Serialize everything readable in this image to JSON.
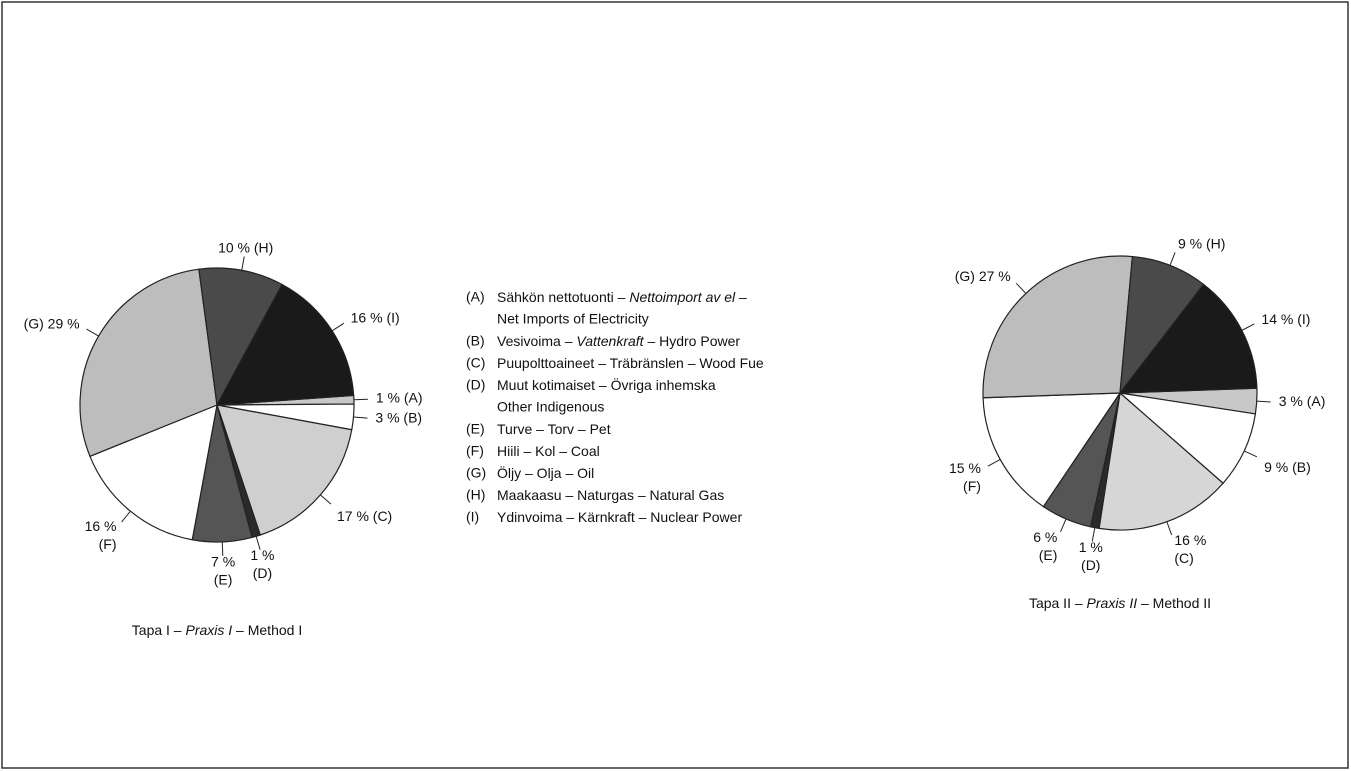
{
  "chart_data": [
    {
      "type": "pie",
      "caption": [
        "Tapa I – ",
        "Praxis I",
        " – Method I"
      ],
      "values": [
        1,
        3,
        17,
        1,
        7,
        16,
        29,
        10,
        16
      ],
      "value_labels": [
        [
          "1 % (A)"
        ],
        [
          "3 % (B)"
        ],
        [
          "17 % (C)"
        ],
        [
          "1 %",
          "(D)"
        ],
        [
          "7 %",
          "(E)"
        ],
        [
          "16 %",
          "(F)"
        ],
        [
          "(G) 29 %"
        ],
        [
          "10 % (H)"
        ],
        [
          "16 % (I)"
        ]
      ],
      "colors": [
        "#c8c8c8",
        "#ffffff",
        "#cfcfcf",
        "#2a2a2a",
        "#555555",
        "#ffffff",
        "#bdbdbd",
        "#4a4a4a",
        "#1a1a1a"
      ]
    },
    {
      "type": "pie",
      "caption": [
        "Tapa II – ",
        "Praxis II",
        " – Method II"
      ],
      "values": [
        3,
        9,
        16,
        1,
        6,
        15,
        27,
        9,
        14
      ],
      "value_labels": [
        [
          "3 % (A)"
        ],
        [
          "9 % (B)"
        ],
        [
          "16 %",
          "(C)"
        ],
        [
          "1 %",
          "(D)"
        ],
        [
          "6 %",
          "(E)"
        ],
        [
          "15 %",
          "(F)"
        ],
        [
          "(G) 27 %"
        ],
        [
          "9 % (H)"
        ],
        [
          "14 % (I)"
        ]
      ],
      "colors": [
        "#c8c8c8",
        "#ffffff",
        "#d6d6d6",
        "#2a2a2a",
        "#555555",
        "#ffffff",
        "#bdbdbd",
        "#4a4a4a",
        "#1a1a1a"
      ]
    }
  ],
  "legend": [
    {
      "key": "(A)",
      "parts": [
        "Sähkön nettotuonti – ",
        "Nettoimport av el",
        " –"
      ],
      "line2": "Net Imports of Electricity"
    },
    {
      "key": "(B)",
      "parts": [
        "Vesivoima – ",
        "Vattenkraft",
        " – Hydro Power"
      ]
    },
    {
      "key": "(C)",
      "parts": [
        "Puupolttoaineet – Träbränslen – Wood Fue"
      ]
    },
    {
      "key": "(D)",
      "parts": [
        "Muut kotimaiset – Övriga inhemska"
      ],
      "line2": "Other Indigenous"
    },
    {
      "key": "(E)",
      "parts": [
        "Turve – Torv – Pet"
      ]
    },
    {
      "key": "(F)",
      "parts": [
        "Hiili – Kol – Coal"
      ]
    },
    {
      "key": "(G)",
      "parts": [
        "Öljy – Olja – Oil"
      ]
    },
    {
      "key": "(H)",
      "parts": [
        "Maakaasu – Naturgas – Natural Gas"
      ]
    },
    {
      "key": "(I)",
      "parts": [
        "Ydinvoima – Kärnkraft – Nuclear Power"
      ]
    }
  ]
}
